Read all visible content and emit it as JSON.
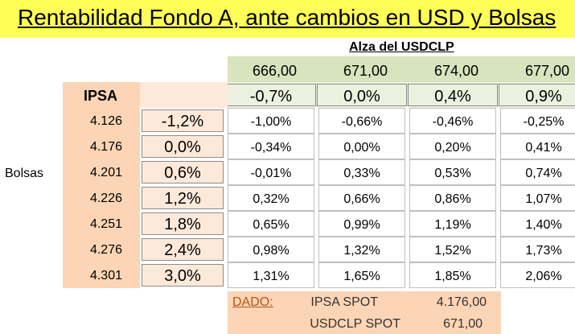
{
  "title": "Rentabilidad Fondo A, ante cambios en USD y Bolsas",
  "subtitle": "Alza del USDCLP",
  "usd_levels": [
    "666,00",
    "671,00",
    "674,00",
    "677,00"
  ],
  "usd_changes": [
    "-0,7%",
    "0,0%",
    "0,4%",
    "0,9%"
  ],
  "ipsa_header": "IPSA",
  "bolsas_label": "Bolsas",
  "ipsa_levels": [
    "4.126",
    "4.176",
    "4.201",
    "4.226",
    "4.251",
    "4.276",
    "4.301"
  ],
  "ipsa_changes": [
    "-1,2%",
    "0,0%",
    "0,6%",
    "1,2%",
    "1,8%",
    "2,4%",
    "3,0%"
  ],
  "returns": [
    [
      "-1,00%",
      "-0,66%",
      "-0,46%",
      "-0,25%"
    ],
    [
      "-0,34%",
      "0,00%",
      "0,20%",
      "0,41%"
    ],
    [
      "-0,01%",
      "0,33%",
      "0,53%",
      "0,74%"
    ],
    [
      "0,32%",
      "0,66%",
      "0,86%",
      "1,07%"
    ],
    [
      "0,65%",
      "0,99%",
      "1,19%",
      "1,40%"
    ],
    [
      "0,98%",
      "1,32%",
      "1,52%",
      "1,73%"
    ],
    [
      "1,31%",
      "1,65%",
      "1,85%",
      "2,06%"
    ]
  ],
  "dado": {
    "label": "DADO:",
    "ipsa_spot_label": "IPSA SPOT",
    "ipsa_spot_value": "4.176,00",
    "usdclp_spot_label": "USDCLP SPOT",
    "usdclp_spot_value": "671,00"
  },
  "colors": {
    "title_bg": "#ffff57",
    "usd_header_bg": "#d7e4bd",
    "usd_pct_bg": "#ebf1de",
    "ipsa_bg": "#fbd5b5",
    "ipsa_pct_bg": "#fde9d9",
    "dado_text": "#b3541e"
  }
}
